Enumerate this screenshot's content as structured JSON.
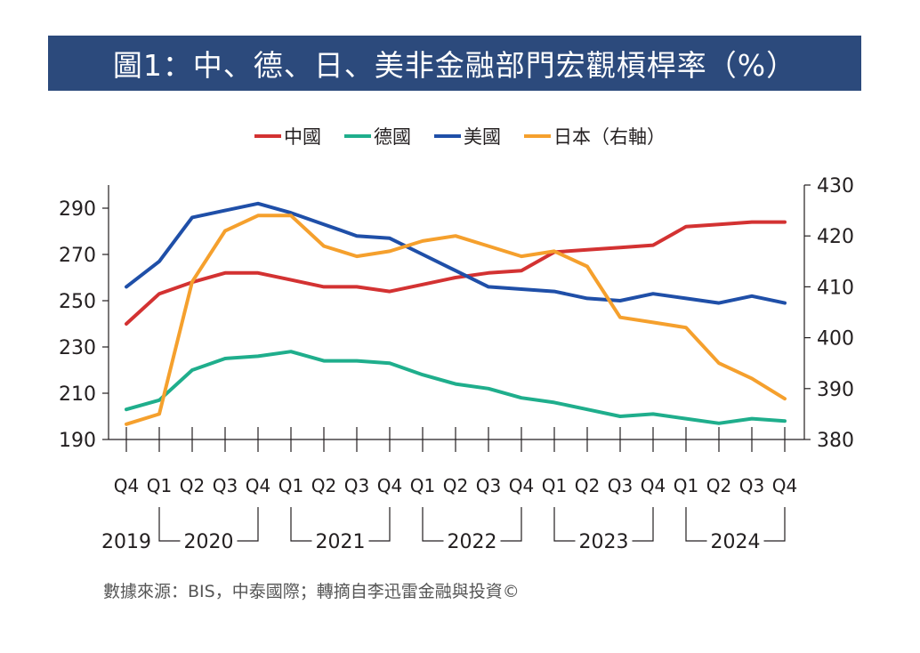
{
  "title": "圖1：中、德、日、美非金融部門宏觀槓桿率（%）",
  "source": "數據來源：BIS，中泰國際；轉摘自李迅雷金融與投資©",
  "colors": {
    "title_bg": "#2c4a7c",
    "china": "#d33232",
    "germany": "#1fae8c",
    "usa": "#1f4fa8",
    "japan": "#f5a02d",
    "axis": "#231f20"
  },
  "chart_data": {
    "type": "line",
    "title": "圖1：中、德、日、美非金融部門宏觀槓桿率（%）",
    "legend": [
      "中國",
      "德國",
      "美國",
      "日本（右軸）"
    ],
    "legend_position": "top-center",
    "grid": false,
    "x": [
      "Q4",
      "Q1",
      "Q2",
      "Q3",
      "Q4",
      "Q1",
      "Q2",
      "Q3",
      "Q4",
      "Q1",
      "Q2",
      "Q3",
      "Q4",
      "Q1",
      "Q2",
      "Q3",
      "Q4",
      "Q1",
      "Q2",
      "Q3",
      "Q4"
    ],
    "year_groups": [
      {
        "label": "2019",
        "start": 0,
        "end": 0
      },
      {
        "label": "2020",
        "start": 1,
        "end": 4
      },
      {
        "label": "2021",
        "start": 5,
        "end": 8
      },
      {
        "label": "2022",
        "start": 9,
        "end": 12
      },
      {
        "label": "2023",
        "start": 13,
        "end": 16
      },
      {
        "label": "2024",
        "start": 17,
        "end": 20
      }
    ],
    "y_left": {
      "ylim": [
        190,
        300
      ],
      "ticks": [
        190,
        210,
        230,
        250,
        270,
        290
      ]
    },
    "y_right": {
      "ylim": [
        380,
        430
      ],
      "ticks": [
        380,
        390,
        400,
        410,
        420,
        430
      ]
    },
    "series": [
      {
        "name": "中國",
        "axis": "left",
        "color": "#d33232",
        "values": [
          240,
          253,
          258,
          262,
          262,
          259,
          256,
          256,
          254,
          257,
          260,
          262,
          263,
          271,
          272,
          273,
          274,
          282,
          283,
          284,
          284
        ]
      },
      {
        "name": "德國",
        "axis": "left",
        "color": "#1fae8c",
        "values": [
          203,
          207,
          220,
          225,
          226,
          228,
          224,
          224,
          223,
          218,
          214,
          212,
          208,
          206,
          203,
          200,
          201,
          199,
          197,
          199,
          198
        ]
      },
      {
        "name": "美國",
        "axis": "left",
        "color": "#1f4fa8",
        "values": [
          256,
          267,
          286,
          289,
          292,
          288,
          283,
          278,
          277,
          270,
          263,
          256,
          255,
          254,
          251,
          250,
          253,
          251,
          249,
          252,
          249
        ]
      },
      {
        "name": "日本（右軸）",
        "axis": "right",
        "color": "#f5a02d",
        "values": [
          383,
          385,
          411,
          421,
          424,
          424,
          418,
          416,
          417,
          419,
          420,
          418,
          416,
          417,
          414,
          404,
          403,
          402,
          395,
          392,
          388
        ]
      }
    ]
  }
}
